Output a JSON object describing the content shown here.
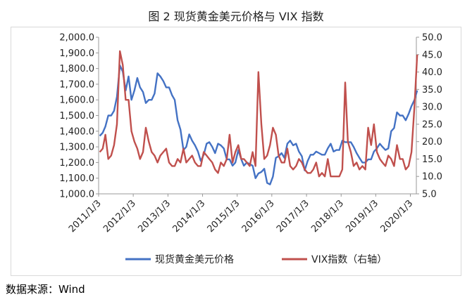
{
  "title": "图 2    现货黄金美元价格与 VIX 指数",
  "source": "数据来源：Wind",
  "chart_data": {
    "type": "line",
    "title": "图 2    现货黄金美元价格与 VIX 指数",
    "x_tick_labels": [
      "2011/1/3",
      "2012/1/3",
      "2013/1/3",
      "2014/1/3",
      "2015/1/3",
      "2016/1/3",
      "2017/1/3",
      "2018/1/3",
      "2019/1/3",
      "2020/1/3"
    ],
    "x_range": [
      "2011-01-03",
      "2020-03-06"
    ],
    "y_left": {
      "range": [
        1000,
        2000
      ],
      "ticks": [
        "1,000.0",
        "1,100.0",
        "1,200.0",
        "1,300.0",
        "1,400.0",
        "1,500.0",
        "1,600.0",
        "1,700.0",
        "1,800.0",
        "1,900.0",
        "2,000.0"
      ]
    },
    "y_right": {
      "range": [
        5,
        50
      ],
      "ticks": [
        "5.0",
        "10.0",
        "15.0",
        "20.0",
        "25.0",
        "30.0",
        "35.0",
        "40.0",
        "45.0",
        "50.0"
      ]
    },
    "grid": false,
    "legend": "bottom",
    "colors": {
      "gold": "#4472c4",
      "vix": "#c0504d"
    },
    "series": [
      {
        "name": "现货黄金美元价格",
        "axis": "left",
        "x": [
          "2011-01",
          "2011-02",
          "2011-03",
          "2011-04",
          "2011-05",
          "2011-06",
          "2011-07",
          "2011-08",
          "2011-09",
          "2011-10",
          "2011-11",
          "2011-12",
          "2012-01",
          "2012-02",
          "2012-03",
          "2012-04",
          "2012-05",
          "2012-06",
          "2012-07",
          "2012-08",
          "2012-09",
          "2012-10",
          "2012-11",
          "2012-12",
          "2013-01",
          "2013-02",
          "2013-03",
          "2013-04",
          "2013-05",
          "2013-06",
          "2013-07",
          "2013-08",
          "2013-09",
          "2013-10",
          "2013-11",
          "2013-12",
          "2014-01",
          "2014-02",
          "2014-03",
          "2014-04",
          "2014-05",
          "2014-06",
          "2014-07",
          "2014-08",
          "2014-09",
          "2014-10",
          "2014-11",
          "2014-12",
          "2015-01",
          "2015-02",
          "2015-03",
          "2015-04",
          "2015-05",
          "2015-06",
          "2015-07",
          "2015-08",
          "2015-09",
          "2015-10",
          "2015-11",
          "2015-12",
          "2016-01",
          "2016-02",
          "2016-03",
          "2016-04",
          "2016-05",
          "2016-06",
          "2016-07",
          "2016-08",
          "2016-09",
          "2016-10",
          "2016-11",
          "2016-12",
          "2017-01",
          "2017-02",
          "2017-03",
          "2017-04",
          "2017-05",
          "2017-06",
          "2017-07",
          "2017-08",
          "2017-09",
          "2017-10",
          "2017-11",
          "2017-12",
          "2018-01",
          "2018-02",
          "2018-03",
          "2018-04",
          "2018-05",
          "2018-06",
          "2018-07",
          "2018-08",
          "2018-09",
          "2018-10",
          "2018-11",
          "2018-12",
          "2019-01",
          "2019-02",
          "2019-03",
          "2019-04",
          "2019-05",
          "2019-06",
          "2019-07",
          "2019-08",
          "2019-09",
          "2019-10",
          "2019-11",
          "2019-12",
          "2020-01",
          "2020-02",
          "2020-03"
        ],
        "values": [
          1370,
          1390,
          1430,
          1500,
          1500,
          1530,
          1620,
          1820,
          1780,
          1660,
          1750,
          1600,
          1660,
          1740,
          1680,
          1650,
          1580,
          1600,
          1600,
          1640,
          1770,
          1750,
          1720,
          1680,
          1680,
          1630,
          1600,
          1470,
          1410,
          1280,
          1300,
          1380,
          1340,
          1310,
          1270,
          1210,
          1250,
          1320,
          1330,
          1300,
          1260,
          1320,
          1310,
          1290,
          1220,
          1220,
          1180,
          1200,
          1280,
          1220,
          1180,
          1200,
          1190,
          1180,
          1100,
          1130,
          1140,
          1160,
          1070,
          1060,
          1110,
          1230,
          1240,
          1260,
          1230,
          1320,
          1340,
          1310,
          1320,
          1270,
          1240,
          1150,
          1210,
          1250,
          1250,
          1270,
          1260,
          1250,
          1250,
          1290,
          1320,
          1270,
          1280,
          1280,
          1340,
          1330,
          1330,
          1330,
          1300,
          1260,
          1230,
          1200,
          1200,
          1220,
          1220,
          1270,
          1290,
          1320,
          1300,
          1280,
          1290,
          1400,
          1420,
          1520,
          1500,
          1500,
          1470,
          1510,
          1560,
          1600,
          1660
        ]
      },
      {
        "name": "VIX指数（右轴）",
        "axis": "right",
        "x": [
          "2011-01",
          "2011-02",
          "2011-03",
          "2011-04",
          "2011-05",
          "2011-06",
          "2011-07",
          "2011-08",
          "2011-09",
          "2011-10",
          "2011-11",
          "2011-12",
          "2012-01",
          "2012-02",
          "2012-03",
          "2012-04",
          "2012-05",
          "2012-06",
          "2012-07",
          "2012-08",
          "2012-09",
          "2012-10",
          "2012-11",
          "2012-12",
          "2013-01",
          "2013-02",
          "2013-03",
          "2013-04",
          "2013-05",
          "2013-06",
          "2013-07",
          "2013-08",
          "2013-09",
          "2013-10",
          "2013-11",
          "2013-12",
          "2014-01",
          "2014-02",
          "2014-03",
          "2014-04",
          "2014-05",
          "2014-06",
          "2014-07",
          "2014-08",
          "2014-09",
          "2014-10",
          "2014-11",
          "2014-12",
          "2015-01",
          "2015-02",
          "2015-03",
          "2015-04",
          "2015-05",
          "2015-06",
          "2015-07",
          "2015-08",
          "2015-09",
          "2015-10",
          "2015-11",
          "2015-12",
          "2016-01",
          "2016-02",
          "2016-03",
          "2016-04",
          "2016-05",
          "2016-06",
          "2016-07",
          "2016-08",
          "2016-09",
          "2016-10",
          "2016-11",
          "2016-12",
          "2017-01",
          "2017-02",
          "2017-03",
          "2017-04",
          "2017-05",
          "2017-06",
          "2017-07",
          "2017-08",
          "2017-09",
          "2017-10",
          "2017-11",
          "2017-12",
          "2018-01",
          "2018-02",
          "2018-03",
          "2018-04",
          "2018-05",
          "2018-06",
          "2018-07",
          "2018-08",
          "2018-09",
          "2018-10",
          "2018-11",
          "2018-12",
          "2019-01",
          "2019-02",
          "2019-03",
          "2019-04",
          "2019-05",
          "2019-06",
          "2019-07",
          "2019-08",
          "2019-09",
          "2019-10",
          "2019-11",
          "2019-12",
          "2020-01",
          "2020-02",
          "2020-03"
        ],
        "values": [
          17,
          18,
          22,
          15,
          16,
          19,
          25,
          46,
          42,
          32,
          32,
          23,
          20,
          18,
          15,
          17,
          24,
          20,
          17,
          16,
          14,
          16,
          17,
          18,
          14,
          13,
          13,
          15,
          14,
          18,
          14,
          15,
          16,
          14,
          13,
          13,
          17,
          16,
          15,
          14,
          12,
          11,
          14,
          13,
          15,
          22,
          14,
          17,
          19,
          15,
          15,
          14,
          13,
          17,
          13,
          40,
          25,
          15,
          16,
          19,
          24,
          22,
          16,
          14,
          14,
          18,
          13,
          12,
          13,
          15,
          14,
          12,
          11,
          11,
          12,
          14,
          10,
          11,
          10,
          15,
          10,
          10,
          10,
          10,
          12,
          37,
          20,
          17,
          13,
          14,
          12,
          13,
          12,
          24,
          19,
          25,
          17,
          15,
          14,
          13,
          16,
          15,
          13,
          19,
          15,
          15,
          12,
          13,
          17,
          30,
          45
        ]
      }
    ]
  }
}
